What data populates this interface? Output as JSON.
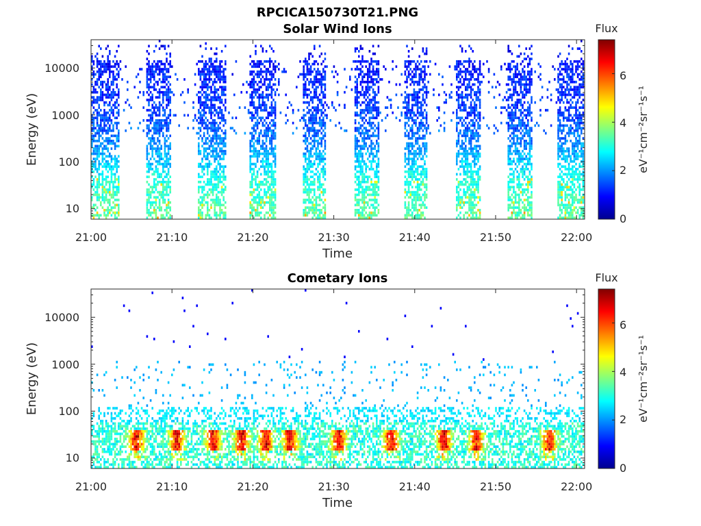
{
  "figure": {
    "filename": "RPCICA150730T21.PNG"
  },
  "colormap": [
    "#00008f",
    "#0000ff",
    "#0080ff",
    "#00ffff",
    "#80ff80",
    "#ffff00",
    "#ff8000",
    "#ff0000",
    "#800000"
  ],
  "chart_data": [
    {
      "type": "heatmap",
      "title": "Solar Wind Ions",
      "xlabel": "Time",
      "ylabel": "Energy (eV)",
      "xlim": [
        "21:00",
        "22:01"
      ],
      "ylim": [
        6,
        40000
      ],
      "yscale": "log",
      "xticks": [
        "21:00",
        "21:10",
        "21:20",
        "21:30",
        "21:40",
        "21:50",
        "22:00"
      ],
      "yticks": [
        "10",
        "100",
        "1000",
        "10000"
      ],
      "yticks_values": [
        10,
        100,
        1000,
        10000
      ],
      "colorbar": {
        "label": "Flux",
        "unit": "eV⁻¹cm⁻²sr⁻¹s⁻¹",
        "range": [
          0,
          7.4
        ],
        "ticks": [
          "0",
          "2",
          "4",
          "6"
        ],
        "tick_values": [
          0,
          2,
          4,
          6
        ]
      },
      "grid": false,
      "bursts_minutes": [
        [
          0,
          3.5
        ],
        [
          6.8,
          9.8
        ],
        [
          13,
          16.5
        ],
        [
          19.5,
          22.8
        ],
        [
          26,
          29
        ],
        [
          32.5,
          35.5
        ],
        [
          38.5,
          41.5
        ],
        [
          45,
          48
        ],
        [
          51.3,
          54.5
        ],
        [
          57.5,
          60.8
        ]
      ],
      "energy_flux_profile": [
        {
          "energy_ev": 8,
          "flux": 3.4
        },
        {
          "energy_ev": 20,
          "flux": 3.2
        },
        {
          "energy_ev": 40,
          "flux": 3.0
        },
        {
          "energy_ev": 100,
          "flux": 2.4
        },
        {
          "energy_ev": 300,
          "flux": 1.8
        },
        {
          "energy_ev": 1000,
          "flux": 1.4
        },
        {
          "energy_ev": 10000,
          "flux": 1.1
        },
        {
          "energy_ev": 30000,
          "flux": 0.9
        }
      ]
    },
    {
      "type": "heatmap",
      "title": "Cometary Ions",
      "xlabel": "Time",
      "ylabel": "Energy (eV)",
      "xlim": [
        "21:00",
        "22:01"
      ],
      "ylim": [
        6,
        40000
      ],
      "yscale": "log",
      "xticks": [
        "21:00",
        "21:10",
        "21:20",
        "21:30",
        "21:40",
        "21:50",
        "22:00"
      ],
      "yticks": [
        "10",
        "100",
        "1000",
        "10000"
      ],
      "yticks_values": [
        10,
        100,
        1000,
        10000
      ],
      "colorbar": {
        "label": "Flux",
        "unit": "eV⁻¹cm⁻²sr⁻¹s⁻¹",
        "range": [
          0,
          7.4
        ],
        "ticks": [
          "0",
          "2",
          "4",
          "6"
        ],
        "tick_values": [
          0,
          2,
          4,
          6
        ]
      },
      "grid": false,
      "peak_energy_band_ev": [
        15,
        40
      ],
      "peak_flux": 7.2,
      "high_flux_times_minutes": [
        5.5,
        10.5,
        15,
        18.5,
        21.5,
        24.5,
        30.5,
        37,
        43.5,
        47.5,
        56.5
      ]
    }
  ]
}
